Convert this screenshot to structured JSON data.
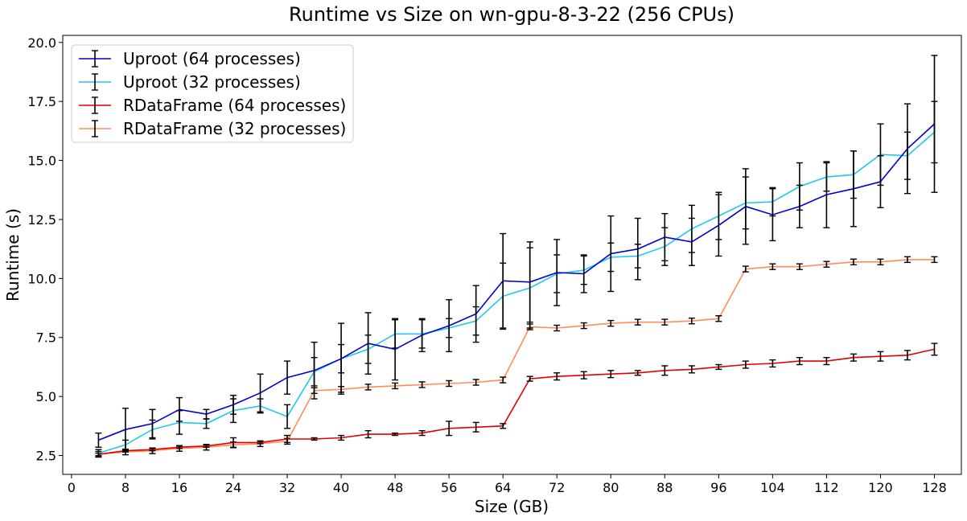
{
  "chart_data": {
    "type": "line",
    "title": "Runtime vs Size on wn-gpu-8-3-22 (256 CPUs)",
    "xlabel": "Size (GB)",
    "ylabel": "Runtime (s)",
    "xlim": [
      -1.3,
      132
    ],
    "ylim": [
      1.7,
      20.3
    ],
    "xticks": [
      0,
      8,
      16,
      24,
      32,
      40,
      48,
      56,
      64,
      72,
      80,
      88,
      96,
      104,
      112,
      120,
      128
    ],
    "yticks": [
      2.5,
      5.0,
      7.5,
      10.0,
      12.5,
      15.0,
      17.5,
      20.0
    ],
    "ytick_labels": [
      "2.5",
      "5.0",
      "7.5",
      "10.0",
      "12.5",
      "15.0",
      "17.5",
      "20.0"
    ],
    "grid": false,
    "legend_position": "top-left",
    "x": [
      4,
      8,
      12,
      16,
      20,
      24,
      28,
      32,
      36,
      40,
      44,
      48,
      52,
      56,
      60,
      64,
      68,
      72,
      76,
      80,
      84,
      88,
      92,
      96,
      100,
      104,
      108,
      112,
      116,
      120,
      124,
      128
    ],
    "series": [
      {
        "name": "Uproot (64 processes)",
        "color": "#0000cd",
        "values": [
          3.15,
          3.6,
          3.85,
          4.45,
          4.25,
          4.65,
          5.15,
          5.8,
          6.1,
          6.6,
          7.25,
          7.0,
          7.6,
          8.0,
          8.5,
          9.9,
          9.85,
          10.25,
          10.2,
          11.05,
          11.25,
          11.75,
          11.55,
          12.25,
          13.05,
          12.7,
          13.05,
          13.55,
          13.8,
          14.1,
          15.5,
          16.55
        ],
        "errors": [
          0.3,
          0.9,
          0.6,
          0.5,
          0.2,
          0.4,
          0.8,
          0.7,
          1.2,
          1.5,
          1.3,
          1.3,
          0.7,
          1.1,
          1.2,
          2.0,
          1.7,
          1.4,
          0.8,
          1.6,
          1.3,
          1.0,
          1.0,
          1.3,
          1.6,
          1.1,
          0.9,
          1.4,
          1.6,
          1.1,
          1.9,
          2.9
        ]
      },
      {
        "name": "Uproot (32 processes)",
        "color": "#1ec8f0",
        "values": [
          2.6,
          2.95,
          3.6,
          3.9,
          3.85,
          4.4,
          4.6,
          4.15,
          6.05,
          6.6,
          7.0,
          7.65,
          7.65,
          7.9,
          8.2,
          9.25,
          9.6,
          10.2,
          10.35,
          10.9,
          10.95,
          11.35,
          12.1,
          12.65,
          13.2,
          13.25,
          13.9,
          14.3,
          14.4,
          15.25,
          15.2,
          16.2
        ],
        "errors": [
          0.15,
          0.2,
          0.4,
          0.5,
          0.2,
          0.5,
          0.3,
          0.5,
          0.6,
          0.6,
          0.6,
          0.6,
          0.6,
          0.4,
          0.6,
          1.4,
          1.7,
          0.8,
          0.6,
          0.6,
          0.5,
          0.8,
          1.0,
          1.0,
          1.1,
          0.6,
          1.0,
          0.6,
          1.0,
          1.3,
          1.0,
          1.3
        ]
      },
      {
        "name": "RDataFrame (64 processes)",
        "color": "#e00000",
        "values": [
          2.55,
          2.7,
          2.75,
          2.85,
          2.9,
          3.05,
          3.05,
          3.2,
          3.2,
          3.25,
          3.4,
          3.4,
          3.45,
          3.65,
          3.7,
          3.75,
          5.75,
          5.85,
          5.9,
          5.95,
          6.0,
          6.1,
          6.15,
          6.25,
          6.35,
          6.4,
          6.5,
          6.5,
          6.65,
          6.7,
          6.75,
          7.0
        ],
        "errors": [
          0.05,
          0.05,
          0.05,
          0.05,
          0.05,
          0.2,
          0.05,
          0.15,
          0.05,
          0.1,
          0.15,
          0.05,
          0.1,
          0.3,
          0.2,
          0.1,
          0.1,
          0.15,
          0.15,
          0.15,
          0.1,
          0.2,
          0.15,
          0.1,
          0.15,
          0.15,
          0.15,
          0.15,
          0.15,
          0.2,
          0.2,
          0.25
        ]
      },
      {
        "name": "RDataFrame (32 processes)",
        "color": "#ff8c5a",
        "values": [
          2.55,
          2.65,
          2.7,
          2.8,
          2.85,
          2.95,
          3.0,
          3.1,
          5.25,
          5.3,
          5.4,
          5.45,
          5.5,
          5.55,
          5.6,
          5.7,
          7.95,
          7.9,
          8.0,
          8.1,
          8.15,
          8.15,
          8.2,
          8.3,
          10.4,
          10.5,
          10.5,
          10.6,
          10.7,
          10.7,
          10.8,
          10.8
        ]
      }
    ]
  }
}
